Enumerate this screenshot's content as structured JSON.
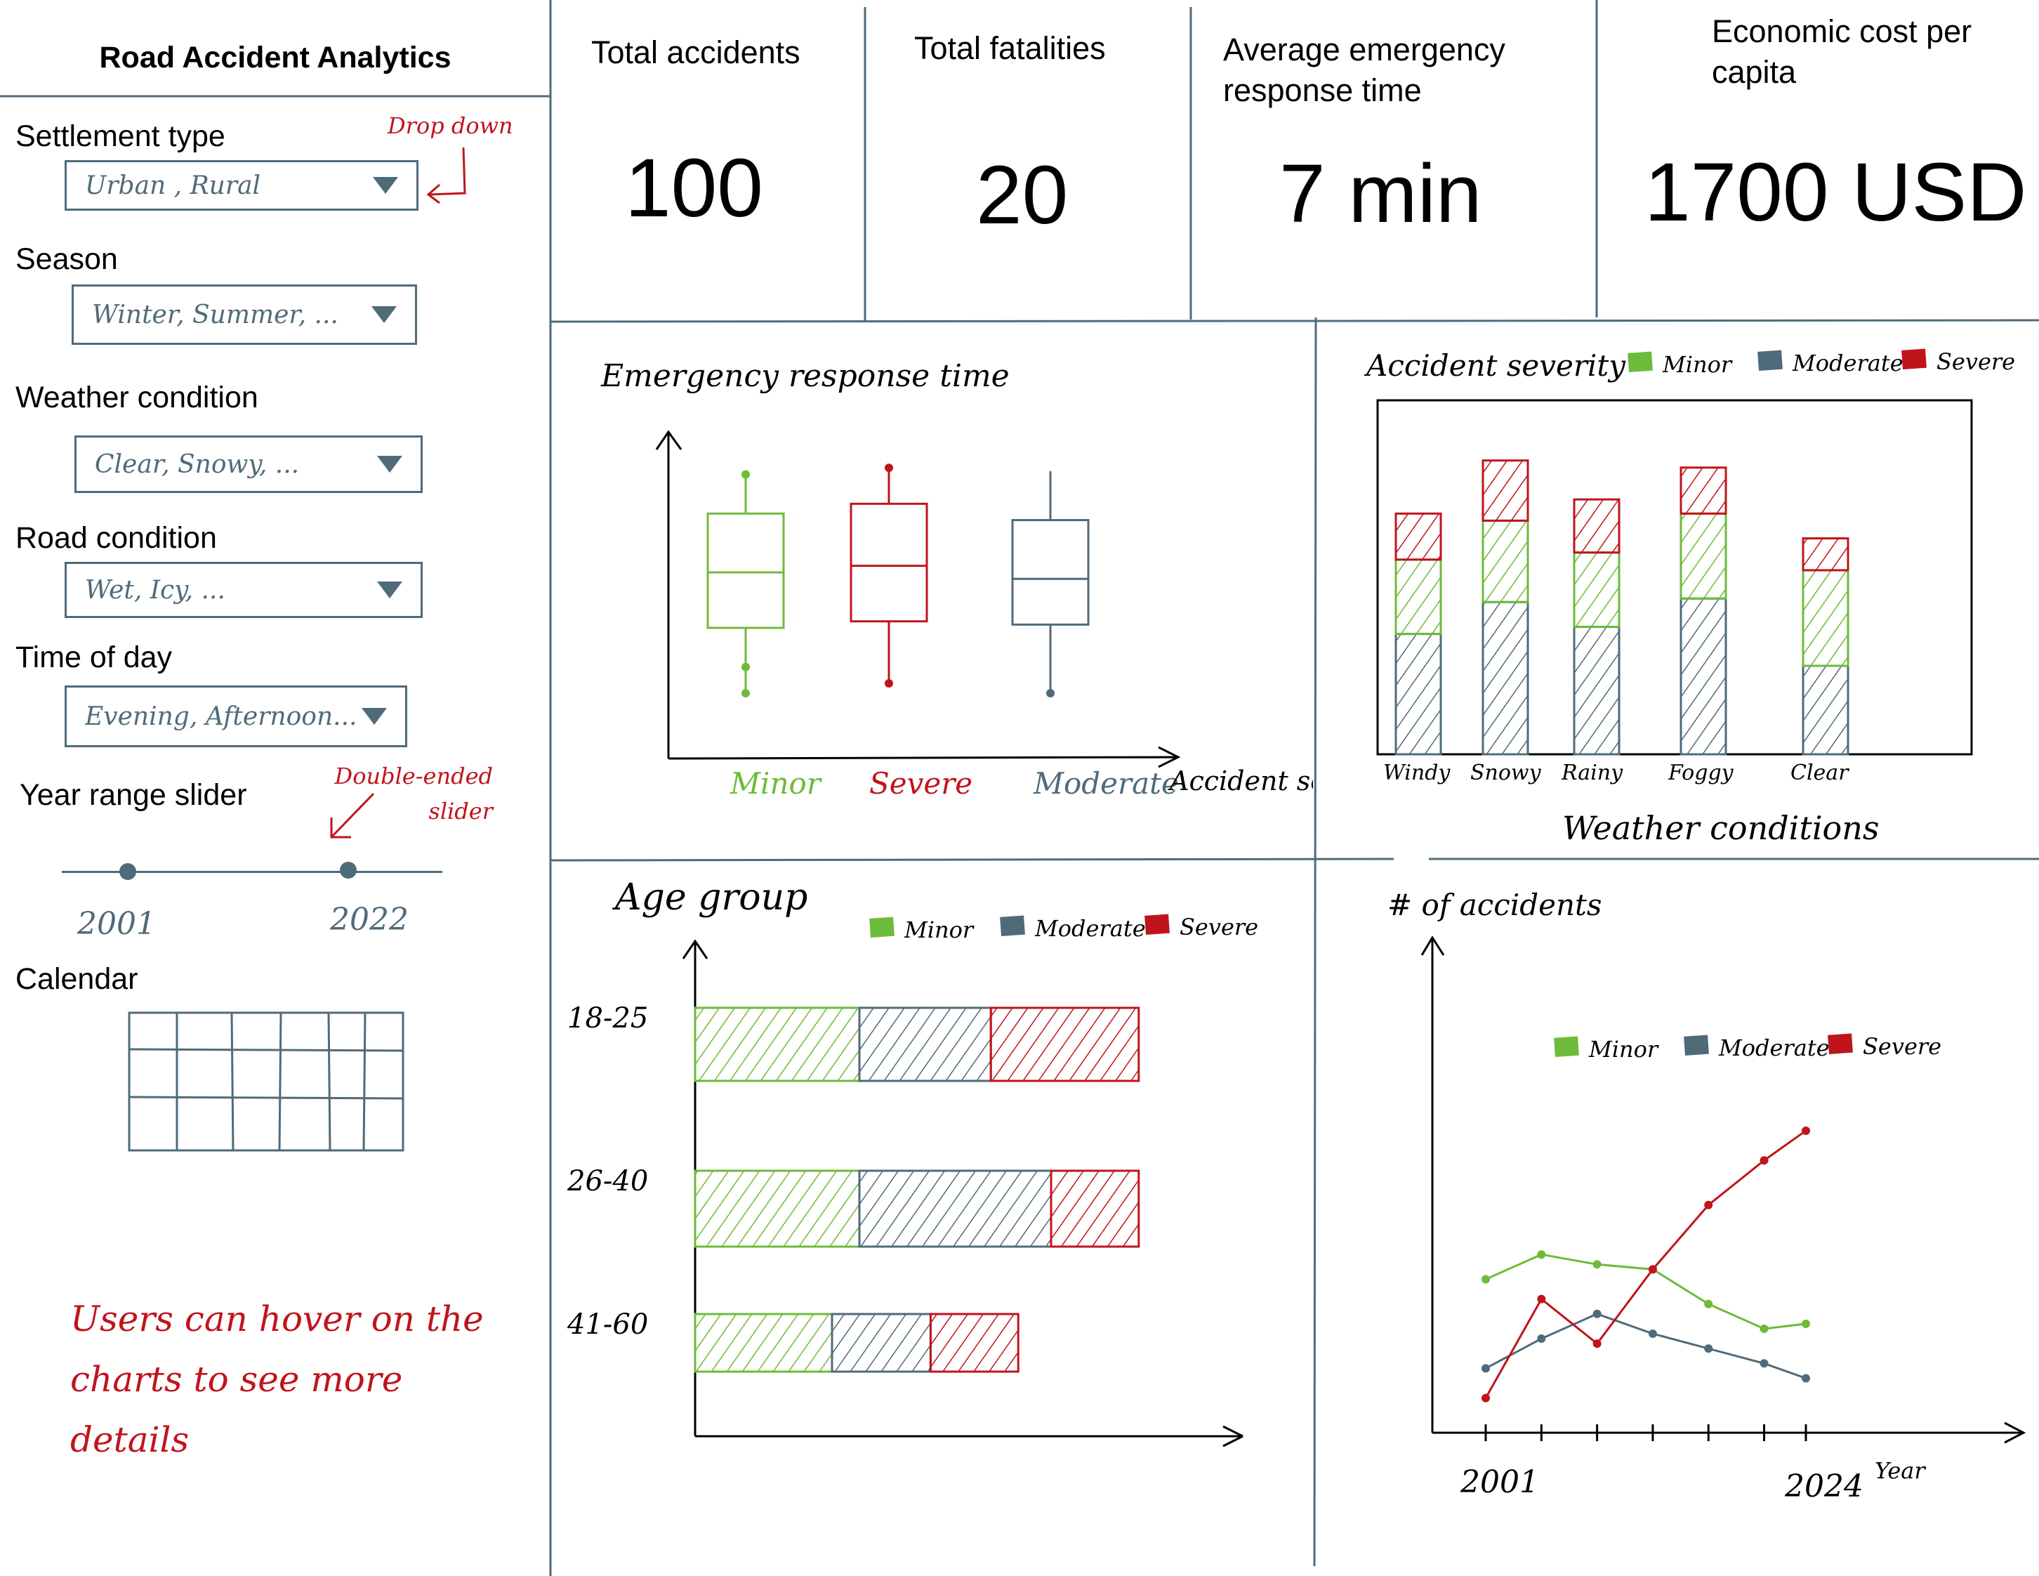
{
  "sidebar": {
    "title": "Road Accident Analytics",
    "filters": [
      {
        "label": "Settlement type",
        "value": "Urban , Rural"
      },
      {
        "label": "Season",
        "value": "Winter, Summer, ..."
      },
      {
        "label": "Weather condition",
        "value": "Clear, Snowy, ..."
      },
      {
        "label": "Road condition",
        "value": "Wet, Icy, ..."
      },
      {
        "label": "Time of day",
        "value": "Evening, Afternoon..."
      }
    ],
    "dropdown_note": "Drop down",
    "slider": {
      "label": "Year range slider",
      "note": "Double-ended slider",
      "min_label": "2001",
      "max_label": "2022"
    },
    "calendar_label": "Calendar",
    "hover_note": "Users can hover on the charts to see more details"
  },
  "kpis": [
    {
      "title": "Total accidents",
      "value": "100"
    },
    {
      "title": "Total fatalities",
      "value": "20"
    },
    {
      "title": "Average emergency response time",
      "value": "7 min"
    },
    {
      "title": "Economic cost per capita",
      "value": "1700 USD"
    }
  ],
  "colors": {
    "minor": "#6dbb3a",
    "moderate": "#4f6b7a",
    "severe": "#c0141c"
  },
  "legend": {
    "minor": "Minor",
    "moderate": "Moderate",
    "severe": "Severe"
  },
  "chart_data": [
    {
      "type": "box",
      "title": "Emergency response time",
      "xlabel": "Accident severity",
      "ylabel": "",
      "categories": [
        "Minor",
        "Severe",
        "Moderate"
      ],
      "boxes": [
        {
          "name": "Minor",
          "whisker_low": 0.2,
          "q1": 0.4,
          "median": 0.57,
          "q3": 0.75,
          "whisker_high": 0.88,
          "outliers": [
            0.87,
            0.28,
            0.2
          ]
        },
        {
          "name": "Severe",
          "whisker_low": 0.23,
          "q1": 0.42,
          "median": 0.59,
          "q3": 0.78,
          "whisker_high": 0.89,
          "outliers": [
            0.89,
            0.23
          ]
        },
        {
          "name": "Moderate",
          "whisker_low": 0.2,
          "q1": 0.41,
          "median": 0.55,
          "q3": 0.73,
          "whisker_high": 0.88,
          "outliers": [
            0.2
          ]
        }
      ]
    },
    {
      "type": "bar",
      "stacked": true,
      "title": "Accident severity",
      "xlabel": "Weather conditions",
      "categories": [
        "Windy",
        "Snowy",
        "Rainy",
        "Foggy",
        "Clear"
      ],
      "series": [
        {
          "name": "Moderate",
          "values": [
            0.34,
            0.43,
            0.36,
            0.44,
            0.25
          ]
        },
        {
          "name": "Minor",
          "values": [
            0.21,
            0.23,
            0.21,
            0.24,
            0.27
          ]
        },
        {
          "name": "Severe",
          "values": [
            0.13,
            0.17,
            0.15,
            0.13,
            0.09
          ]
        }
      ]
    },
    {
      "type": "bar",
      "orientation": "horizontal",
      "stacked": true,
      "title": "Age group",
      "categories": [
        "18-25",
        "26-40",
        "41-60"
      ],
      "series": [
        {
          "name": "Minor",
          "values": [
            0.3,
            0.3,
            0.25
          ]
        },
        {
          "name": "Moderate",
          "values": [
            0.24,
            0.35,
            0.18
          ]
        },
        {
          "name": "Severe",
          "values": [
            0.27,
            0.16,
            0.16
          ]
        }
      ]
    },
    {
      "type": "line",
      "title": "# of accidents",
      "xlabel": "Year",
      "x_tick_labels": [
        "2001",
        "2024"
      ],
      "x": [
        2001,
        2005,
        2009,
        2013,
        2017,
        2021,
        2024
      ],
      "series": [
        {
          "name": "Minor",
          "values": [
            0.31,
            0.36,
            0.34,
            0.33,
            0.26,
            0.21,
            0.22
          ]
        },
        {
          "name": "Moderate",
          "values": [
            0.13,
            0.19,
            0.24,
            0.2,
            0.17,
            0.14,
            0.11
          ]
        },
        {
          "name": "Severe",
          "values": [
            0.07,
            0.27,
            0.18,
            0.33,
            0.46,
            0.55,
            0.61
          ]
        }
      ]
    }
  ]
}
